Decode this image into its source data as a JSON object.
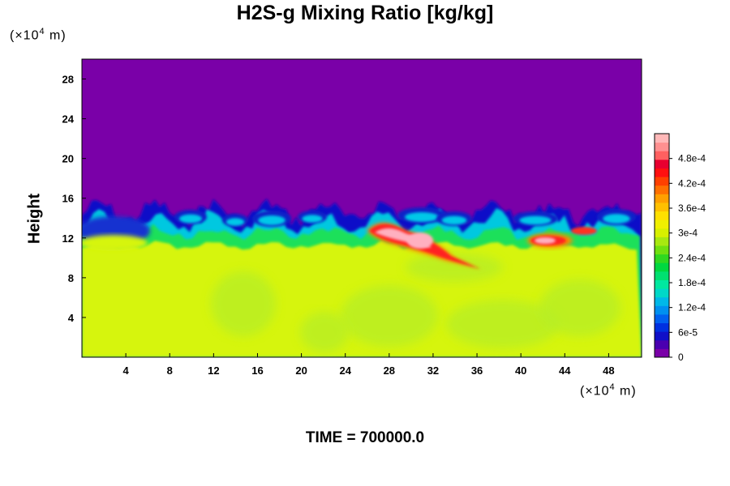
{
  "chart_data": {
    "type": "heatmap",
    "title": "H2S-g Mixing Ratio [kg/kg]",
    "ylabel": "Height",
    "xunit": "(×10",
    "yunit": "(×10",
    "unit_exp": "4",
    "unit_tail": " m)",
    "xlim": [
      0,
      51
    ],
    "ylim": [
      0,
      30
    ],
    "x_ticks": [
      4,
      8,
      12,
      16,
      20,
      24,
      28,
      32,
      36,
      40,
      44,
      48
    ],
    "y_ticks": [
      4,
      8,
      12,
      16,
      20,
      24,
      28
    ],
    "colorbar": {
      "range": [
        0,
        0.00054
      ],
      "labels": [
        {
          "value": 0,
          "text": "0"
        },
        {
          "value": 6e-05,
          "text": "6e-5"
        },
        {
          "value": 0.00012,
          "text": "1.2e-4"
        },
        {
          "value": 0.00018,
          "text": "1.8e-4"
        },
        {
          "value": 0.00024,
          "text": "2.4e-4"
        },
        {
          "value": 0.0003,
          "text": "3e-4"
        },
        {
          "value": 0.00036,
          "text": "3.6e-4"
        },
        {
          "value": 0.00042,
          "text": "4.2e-4"
        },
        {
          "value": 0.00048,
          "text": "4.8e-4"
        }
      ],
      "colors": [
        "#7a00a8",
        "#4a00b0",
        "#1010c8",
        "#0030e0",
        "#0060f0",
        "#0090f0",
        "#00b8e8",
        "#00d8c8",
        "#00e8a0",
        "#00e070",
        "#00d840",
        "#30d820",
        "#70e010",
        "#a8e810",
        "#d8f000",
        "#f0f000",
        "#ffe000",
        "#ffc000",
        "#ffa000",
        "#ff7000",
        "#ff4000",
        "#ff1010",
        "#e80030",
        "#ff6060",
        "#ff9090",
        "#ffb8b8"
      ]
    },
    "fields": {
      "background": "#7a00a8",
      "lower_layer": "#d6f50a",
      "patches": "#b6ee26",
      "mid_band": "#1fe05a",
      "plume_core": "#ffb0c0",
      "plume_edge": "#ff2020"
    }
  },
  "footer": {
    "time": "TIME = 700000.0"
  }
}
